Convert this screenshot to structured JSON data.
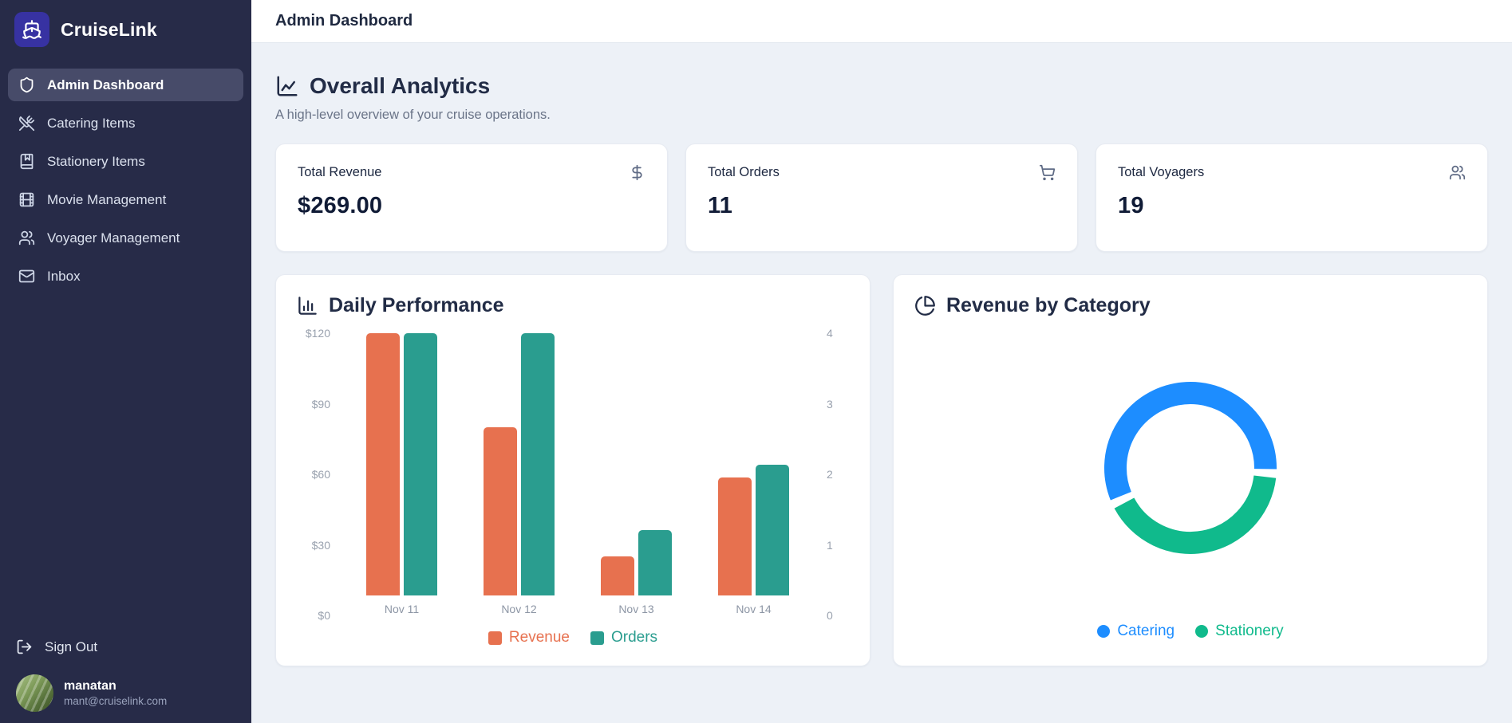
{
  "app": {
    "name": "CruiseLink",
    "logo_icon": "ship-icon"
  },
  "theme": {
    "sidebar_bg": "#272b48",
    "sidebar_active_bg": "#474b69",
    "brand_tile_bg": "#3732a2",
    "content_bg": "#edf1f7",
    "revenue_color": "#e7714f",
    "orders_color": "#2a9d8f",
    "catering_color": "#1d8dff",
    "stationery_color": "#10ba8c"
  },
  "sidebar": {
    "items": [
      {
        "label": "Admin Dashboard",
        "icon": "shield-icon",
        "active": true
      },
      {
        "label": "Catering Items",
        "icon": "utensils-crossed-icon",
        "active": false
      },
      {
        "label": "Stationery Items",
        "icon": "book-marked-icon",
        "active": false
      },
      {
        "label": "Movie Management",
        "icon": "film-icon",
        "active": false
      },
      {
        "label": "Voyager Management",
        "icon": "users-icon",
        "active": false
      },
      {
        "label": "Inbox",
        "icon": "mail-icon",
        "active": false
      }
    ],
    "sign_out_label": "Sign Out",
    "user": {
      "name": "manatan",
      "email": "mant@cruiselink.com"
    }
  },
  "header": {
    "title": "Admin Dashboard"
  },
  "overview": {
    "title": "Overall Analytics",
    "title_icon": "chart-line-icon",
    "subtitle": "A high-level overview of your cruise operations.",
    "stats": [
      {
        "label": "Total Revenue",
        "value": "$269.00",
        "icon": "dollar-sign-icon"
      },
      {
        "label": "Total Orders",
        "value": "11",
        "icon": "shopping-cart-icon"
      },
      {
        "label": "Total Voyagers",
        "value": "19",
        "icon": "users-icon"
      }
    ]
  },
  "chart_data": [
    {
      "type": "bar",
      "title": "Daily Performance",
      "title_icon": "bar-chart-icon",
      "categories": [
        "Nov 11",
        "Nov 12",
        "Nov 13",
        "Nov 14"
      ],
      "series": [
        {
          "name": "Revenue",
          "axis": "left",
          "color": "#e7714f",
          "values": [
            120,
            77,
            18,
            54
          ]
        },
        {
          "name": "Orders",
          "axis": "right",
          "color": "#2a9d8f",
          "values": [
            4,
            4,
            1,
            2
          ]
        }
      ],
      "left_axis": {
        "min": 0,
        "max": 120,
        "ticks": [
          "$0",
          "$30",
          "$60",
          "$90",
          "$120"
        ]
      },
      "right_axis": {
        "min": 0,
        "max": 4,
        "ticks": [
          "0",
          "1",
          "2",
          "3",
          "4"
        ]
      },
      "grid": false,
      "legend_position": "bottom"
    },
    {
      "type": "donut",
      "title": "Revenue by Category",
      "title_icon": "pie-chart-icon",
      "labels": [
        "Catering",
        "Stationery"
      ],
      "values": [
        156,
        113
      ],
      "colors": [
        "#1d8dff",
        "#10ba8c"
      ],
      "rotation_deg": 245,
      "gap_deg": 6,
      "legend_position": "bottom"
    }
  ]
}
